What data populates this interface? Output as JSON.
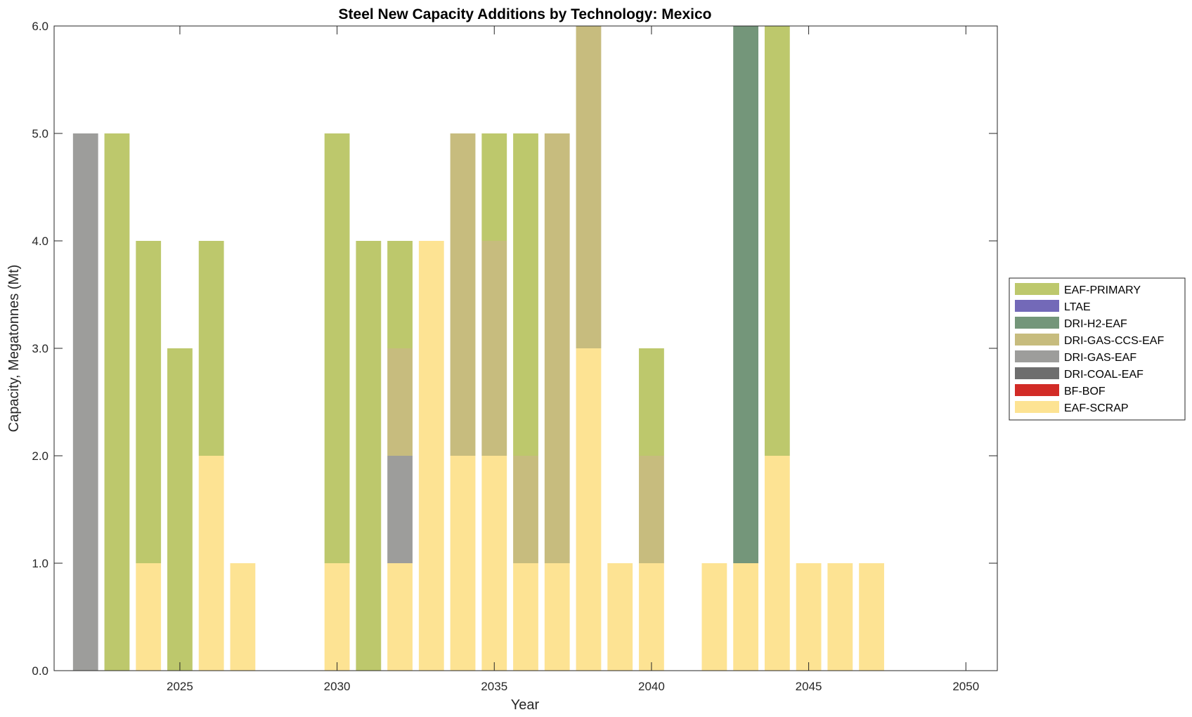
{
  "chart_data": {
    "type": "bar",
    "stacked": true,
    "title": "Steel New Capacity Additions by Technology: Mexico",
    "xlabel": "Year",
    "ylabel": "Capacity, Megatonnes (Mt)",
    "xlim": [
      2021,
      2051
    ],
    "ylim": [
      0,
      6
    ],
    "xticks": [
      2025,
      2030,
      2035,
      2040,
      2045,
      2050
    ],
    "xtick_labels": [
      "2025",
      "2030",
      "2035",
      "2040",
      "2045",
      "2050"
    ],
    "yticks": [
      0,
      1,
      2,
      3,
      4,
      5,
      6
    ],
    "ytick_labels": [
      "0.0",
      "1.0",
      "2.0",
      "3.0",
      "4.0",
      "5.0",
      "6.0"
    ],
    "grid": false,
    "legend_position": "right",
    "x": [
      2022,
      2023,
      2024,
      2025,
      2026,
      2027,
      2028,
      2029,
      2030,
      2031,
      2032,
      2033,
      2034,
      2035,
      2036,
      2037,
      2038,
      2039,
      2040,
      2041,
      2042,
      2043,
      2044,
      2045,
      2046,
      2047,
      2048,
      2049,
      2050
    ],
    "stack_order": [
      "EAF-SCRAP",
      "BF-BOF",
      "DRI-COAL-EAF",
      "DRI-GAS-EAF",
      "DRI-GAS-CCS-EAF",
      "DRI-H2-EAF",
      "LTAE",
      "EAF-PRIMARY"
    ],
    "legend_order": [
      "EAF-PRIMARY",
      "LTAE",
      "DRI-H2-EAF",
      "DRI-GAS-CCS-EAF",
      "DRI-GAS-EAF",
      "DRI-COAL-EAF",
      "BF-BOF",
      "EAF-SCRAP"
    ],
    "series": [
      {
        "name": "EAF-PRIMARY",
        "color": "#bdc86c",
        "values": [
          0,
          5,
          3,
          3,
          2,
          0,
          0,
          0,
          4,
          4,
          1,
          0,
          0,
          1,
          3,
          0,
          0,
          0,
          1,
          0,
          0,
          0,
          4,
          0,
          0,
          0,
          0,
          0,
          0
        ]
      },
      {
        "name": "LTAE",
        "color": "#7369b8",
        "values": [
          0,
          0,
          0,
          0,
          0,
          0,
          0,
          0,
          0,
          0,
          0,
          0,
          0,
          0,
          0,
          0,
          0,
          0,
          0,
          0,
          0,
          0,
          0,
          0,
          0,
          0,
          0,
          0,
          0
        ]
      },
      {
        "name": "DRI-H2-EAF",
        "color": "#74967a",
        "values": [
          0,
          0,
          0,
          0,
          0,
          0,
          0,
          0,
          0,
          0,
          0,
          0,
          0,
          0,
          0,
          0,
          0,
          0,
          0,
          0,
          0,
          5,
          0,
          0,
          0,
          0,
          0,
          0,
          0
        ]
      },
      {
        "name": "DRI-GAS-CCS-EAF",
        "color": "#c7bc7e",
        "values": [
          0,
          0,
          0,
          0,
          0,
          0,
          0,
          0,
          0,
          0,
          1,
          0,
          3,
          2,
          1,
          4,
          3,
          0,
          1,
          0,
          0,
          0,
          0,
          0,
          0,
          0,
          0,
          0,
          0
        ]
      },
      {
        "name": "DRI-GAS-EAF",
        "color": "#9d9d9b",
        "values": [
          5,
          0,
          0,
          0,
          0,
          0,
          0,
          0,
          0,
          0,
          1,
          0,
          0,
          0,
          0,
          0,
          0,
          0,
          0,
          0,
          0,
          0,
          0,
          0,
          0,
          0,
          0,
          0,
          0
        ]
      },
      {
        "name": "DRI-COAL-EAF",
        "color": "#6e6e6e",
        "values": [
          0,
          0,
          0,
          0,
          0,
          0,
          0,
          0,
          0,
          0,
          0,
          0,
          0,
          0,
          0,
          0,
          0,
          0,
          0,
          0,
          0,
          0,
          0,
          0,
          0,
          0,
          0,
          0,
          0
        ]
      },
      {
        "name": "BF-BOF",
        "color": "#d22b26",
        "values": [
          0,
          0,
          0,
          0,
          0,
          0,
          0,
          0,
          0,
          0,
          0,
          0,
          0,
          0,
          0,
          0,
          0,
          0,
          0,
          0,
          0,
          0,
          0,
          0,
          0,
          0,
          0,
          0,
          0
        ]
      },
      {
        "name": "EAF-SCRAP",
        "color": "#fde393",
        "values": [
          0,
          0,
          1,
          0,
          2,
          1,
          0,
          0,
          1,
          0,
          1,
          4,
          2,
          2,
          1,
          1,
          3,
          1,
          1,
          0,
          1,
          1,
          2,
          1,
          1,
          1,
          0,
          0,
          0
        ]
      }
    ]
  }
}
